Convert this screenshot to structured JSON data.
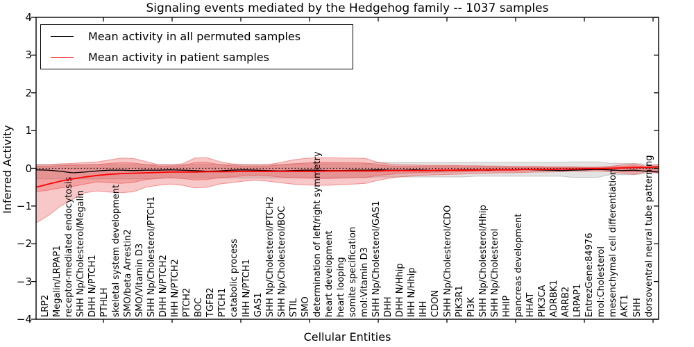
{
  "chart_data": {
    "type": "line",
    "title": "Signaling events mediated by the Hedgehog family -- 1037 samples",
    "xlabel": "Cellular Entities",
    "ylabel": "Inferred Activity",
    "ylim": [
      -4,
      4
    ],
    "yticks": [
      4,
      3,
      2,
      1,
      0,
      -1,
      -2,
      -3,
      -4
    ],
    "ytick_labels": [
      "4",
      "3",
      "2",
      "1",
      "0",
      "−1",
      "−2",
      "−3",
      "−4"
    ],
    "grid": false,
    "legend_position": "upper left",
    "zero_reference_line": {
      "value": 0,
      "style": "dotted",
      "color": "#000000"
    },
    "categories": [
      "LRP2",
      "Megalin/LRPAP1",
      "receptor-mediated endocytosis",
      "SHH Np/Cholesterol/Megalin",
      "DHH N/PTCH1",
      "PTHLH",
      "skeletal system development",
      "SMO/beta Arrestin2",
      "SMO/Vitamin D3",
      "SHH Np/Cholesterol/PTCH1",
      "DHH N/PTCH2",
      "IHH N/PTCH2",
      "PTCH2",
      "BOC",
      "TGFB2",
      "PTCH1",
      "catabolic process",
      "IHH N/PTCH1",
      "GAS1",
      "SHH Np/Cholesterol/PTCH2",
      "SHH Np/Cholesterol/BOC",
      "STIL",
      "SMO",
      "determination of left/right symmetry",
      "heart development",
      "heart looping",
      "somite specification",
      "mol:Vitamin D3",
      "SHH Np/Cholesterol/GAS1",
      "DHH",
      "DHH N/Hhip",
      "IHH N/Hhip",
      "IHH",
      "CDON",
      "SHH Np/Cholesterol/CDO",
      "PIK3R1",
      "PI3K",
      "SHH Np/Cholesterol/Hhip",
      "SHH Np/Cholesterol",
      "HHIP",
      "pancreas development",
      "HHAT",
      "PIK3CA",
      "ADRBK1",
      "ARRB2",
      "LRPAP1",
      "EntrezGene:84976",
      "mol:Cholesterol",
      "mesenchymal cell differentiation",
      "AKT1",
      "SHH",
      "dorsoventral neural tube patterning"
    ],
    "series": [
      {
        "name": "Mean activity in all permuted samples",
        "color": "#000000",
        "style": "solid",
        "values": [
          -0.04,
          -0.05,
          -0.08,
          -0.12,
          -0.1,
          -0.07,
          -0.05,
          -0.05,
          -0.06,
          -0.05,
          -0.05,
          -0.04,
          -0.05,
          -0.06,
          -0.08,
          -0.07,
          -0.05,
          -0.04,
          -0.05,
          -0.06,
          -0.07,
          -0.06,
          -0.05,
          -0.05,
          -0.06,
          -0.06,
          -0.05,
          -0.05,
          -0.04,
          -0.05,
          -0.05,
          -0.04,
          -0.05,
          -0.06,
          -0.05,
          -0.04,
          -0.04,
          -0.05,
          -0.04,
          -0.04,
          -0.03,
          -0.04,
          -0.05,
          -0.06,
          -0.05,
          -0.04,
          -0.03,
          -0.04,
          -0.06,
          -0.05,
          -0.08,
          -0.1
        ]
      },
      {
        "name": "Mean activity in patient samples",
        "color": "#ff0000",
        "style": "solid",
        "values": [
          -0.5,
          -0.42,
          -0.34,
          -0.28,
          -0.23,
          -0.19,
          -0.16,
          -0.14,
          -0.13,
          -0.12,
          -0.11,
          -0.1,
          -0.1,
          -0.1,
          -0.09,
          -0.09,
          -0.09,
          -0.08,
          -0.08,
          -0.08,
          -0.08,
          -0.08,
          -0.08,
          -0.08,
          -0.07,
          -0.07,
          -0.07,
          -0.07,
          -0.07,
          -0.06,
          -0.06,
          -0.06,
          -0.06,
          -0.05,
          -0.05,
          -0.05,
          -0.05,
          -0.04,
          -0.04,
          -0.04,
          -0.03,
          -0.03,
          -0.03,
          -0.02,
          -0.02,
          -0.01,
          -0.01,
          0.0,
          0.01,
          0.02,
          0.02,
          0.04
        ]
      }
    ],
    "bands": [
      {
        "name": "permuted-samples-range",
        "fill": "#909090",
        "opacity": 0.25,
        "hi": [
          0.1,
          0.1,
          0.1,
          0.1,
          0.1,
          0.1,
          0.1,
          0.1,
          0.1,
          0.1,
          0.1,
          0.1,
          0.1,
          0.1,
          0.1,
          0.1,
          0.1,
          0.1,
          0.1,
          0.1,
          0.1,
          0.12,
          0.12,
          0.12,
          0.12,
          0.12,
          0.12,
          0.12,
          0.15,
          0.15,
          0.15,
          0.15,
          0.15,
          0.15,
          0.15,
          0.15,
          0.16,
          0.16,
          0.16,
          0.16,
          0.16,
          0.16,
          0.16,
          0.16,
          0.17,
          0.17,
          0.17,
          0.13,
          0.13,
          0.13,
          0.11,
          0.09
        ],
        "lo": [
          -0.28,
          -0.28,
          -0.28,
          -0.28,
          -0.28,
          -0.28,
          -0.28,
          -0.28,
          -0.28,
          -0.28,
          -0.26,
          -0.26,
          -0.26,
          -0.26,
          -0.26,
          -0.26,
          -0.26,
          -0.26,
          -0.26,
          -0.26,
          -0.26,
          -0.25,
          -0.25,
          -0.25,
          -0.25,
          -0.25,
          -0.25,
          -0.25,
          -0.23,
          -0.23,
          -0.23,
          -0.23,
          -0.23,
          -0.23,
          -0.23,
          -0.23,
          -0.21,
          -0.21,
          -0.21,
          -0.21,
          -0.21,
          -0.21,
          -0.21,
          -0.21,
          -0.24,
          -0.24,
          -0.24,
          -0.17,
          -0.17,
          -0.17,
          -0.14,
          -0.11
        ]
      },
      {
        "name": "patient-samples-range-outer",
        "fill": "#e84a4a",
        "opacity": 0.3,
        "hi": [
          0.09,
          0.1,
          0.12,
          0.13,
          0.15,
          0.17,
          0.22,
          0.27,
          0.26,
          0.18,
          0.1,
          0.09,
          0.12,
          0.27,
          0.28,
          0.18,
          0.12,
          0.1,
          0.09,
          0.1,
          0.15,
          0.22,
          0.26,
          0.28,
          0.28,
          0.27,
          0.27,
          0.26,
          0.16,
          0.11,
          0.09,
          0.09,
          0.08,
          0.08,
          0.08,
          0.07,
          0.07,
          0.06,
          0.06,
          0.05,
          0.05,
          0.05,
          0.04,
          0.04,
          0.04,
          0.03,
          0.03,
          0.05,
          0.09,
          0.12,
          0.05,
          0.1
        ],
        "lo": [
          -1.45,
          -1.25,
          -1.0,
          -0.82,
          -0.65,
          -0.6,
          -0.63,
          -0.65,
          -0.62,
          -0.5,
          -0.45,
          -0.42,
          -0.45,
          -0.52,
          -0.5,
          -0.42,
          -0.38,
          -0.34,
          -0.32,
          -0.34,
          -0.38,
          -0.42,
          -0.44,
          -0.45,
          -0.45,
          -0.43,
          -0.42,
          -0.4,
          -0.32,
          -0.26,
          -0.22,
          -0.2,
          -0.18,
          -0.17,
          -0.16,
          -0.15,
          -0.14,
          -0.13,
          -0.12,
          -0.12,
          -0.11,
          -0.1,
          -0.1,
          -0.09,
          -0.08,
          -0.08,
          -0.07,
          -0.09,
          -0.13,
          -0.16,
          -0.09,
          -0.13
        ]
      },
      {
        "name": "patient-samples-range-inner",
        "fill": "#e84a4a",
        "opacity": 0.3,
        "hi": [
          0.06,
          0.06,
          0.07,
          0.08,
          0.09,
          0.1,
          0.13,
          0.15,
          0.14,
          0.1,
          0.06,
          0.06,
          0.07,
          0.15,
          0.16,
          0.1,
          0.07,
          0.06,
          0.06,
          0.06,
          0.09,
          0.12,
          0.14,
          0.16,
          0.16,
          0.15,
          0.15,
          0.14,
          0.09,
          0.06,
          0.05,
          0.05,
          0.05,
          0.05,
          0.05,
          0.04,
          0.04,
          0.04,
          0.03,
          0.03,
          0.03,
          0.03,
          0.02,
          0.02,
          0.02,
          0.02,
          0.02,
          0.03,
          0.05,
          0.07,
          0.03,
          0.06
        ],
        "lo": [
          -0.62,
          -0.58,
          -0.52,
          -0.48,
          -0.42,
          -0.36,
          -0.38,
          -0.4,
          -0.37,
          -0.3,
          -0.27,
          -0.25,
          -0.27,
          -0.31,
          -0.3,
          -0.25,
          -0.23,
          -0.2,
          -0.19,
          -0.2,
          -0.23,
          -0.25,
          -0.26,
          -0.27,
          -0.27,
          -0.26,
          -0.25,
          -0.24,
          -0.19,
          -0.16,
          -0.13,
          -0.12,
          -0.11,
          -0.1,
          -0.1,
          -0.09,
          -0.08,
          -0.08,
          -0.07,
          -0.07,
          -0.07,
          -0.06,
          -0.06,
          -0.05,
          -0.05,
          -0.05,
          -0.04,
          -0.05,
          -0.08,
          -0.1,
          -0.05,
          -0.08
        ]
      }
    ]
  },
  "legend": {
    "items": [
      {
        "label": "Mean activity in all permuted samples",
        "color": "#000000"
      },
      {
        "label": "Mean activity in patient samples",
        "color": "#ff0000"
      }
    ]
  }
}
